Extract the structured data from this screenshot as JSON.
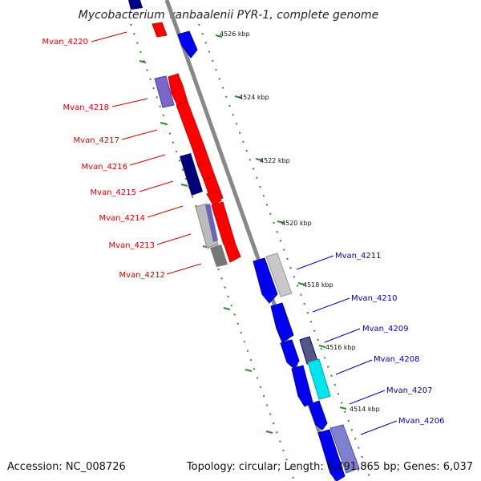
{
  "title": "Mycobacterium vanbaalenii PYR-1, complete genome",
  "footer": {
    "accession": "Accession: NC_008726",
    "summary": "Topology: circular; Length: 6,491,865 bp; Genes: 6,037"
  },
  "colors": {
    "forward_genes": "#ff0000",
    "reverse_genes": "#0000ff",
    "forward_labels": "#dd0000",
    "reverse_labels": "#0000cc",
    "backbone": "#888888",
    "ticks": "#2e8b2e"
  },
  "scale_labels": [
    "4526 kbp",
    "4524 kbp",
    "4522 kbp",
    "4520 kbp",
    "4518 kbp",
    "4516 kbp",
    "4514 kbp"
  ],
  "left_labels": [
    "Mvan_4220",
    "Mvan_4218",
    "Mvan_4217",
    "Mvan_4216",
    "Mvan_4215",
    "Mvan_4214",
    "Mvan_4213",
    "Mvan_4212"
  ],
  "right_labels": [
    "Mvan_4211",
    "Mvan_4210",
    "Mvan_4209",
    "Mvan_4208",
    "Mvan_4207",
    "Mvan_4206"
  ]
}
